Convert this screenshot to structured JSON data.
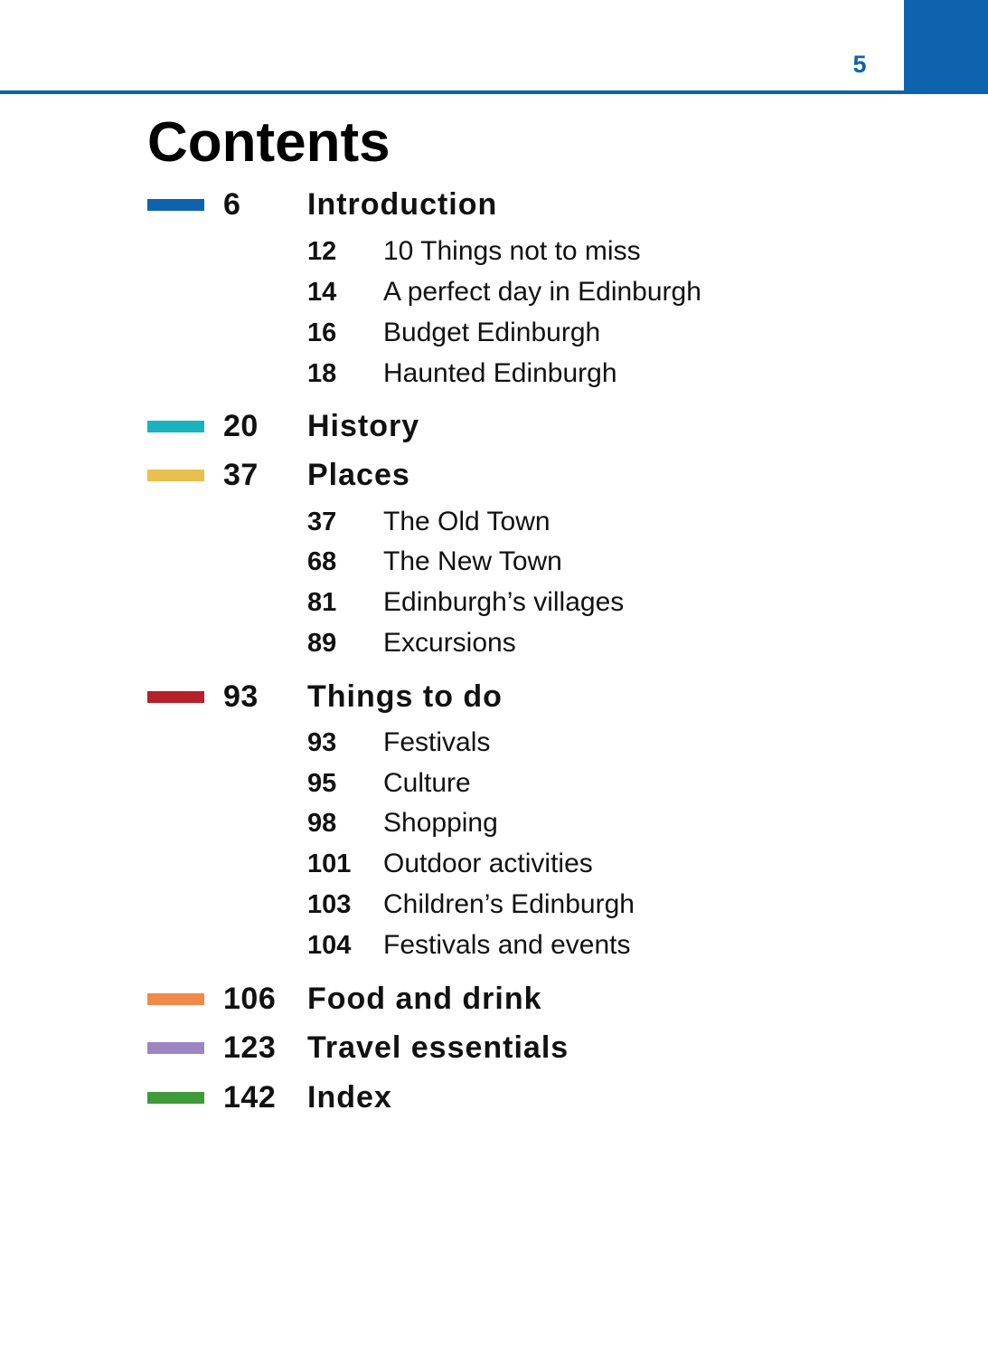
{
  "page_number": "5",
  "title": "Contents",
  "colors": {
    "accent_blue": "#0f62ad",
    "introduction": "#0f62ad",
    "history": "#1ab3bd",
    "places": "#e8c04d",
    "things_to_do": "#b5202b",
    "food_and_drink": "#f08a49",
    "travel_essentials": "#9b86c2",
    "index": "#3f9a3a"
  },
  "sections": [
    {
      "page": "6",
      "title": "Introduction",
      "items": [
        {
          "page": "12",
          "title": "10 Things not to miss"
        },
        {
          "page": "14",
          "title": "A perfect day in Edinburgh"
        },
        {
          "page": "16",
          "title": "Budget Edinburgh"
        },
        {
          "page": "18",
          "title": "Haunted Edinburgh"
        }
      ]
    },
    {
      "page": "20",
      "title": "History",
      "items": []
    },
    {
      "page": "37",
      "title": "Places",
      "items": [
        {
          "page": "37",
          "title": "The Old Town"
        },
        {
          "page": "68",
          "title": "The New Town"
        },
        {
          "page": "81",
          "title": "Edinburgh’s villages"
        },
        {
          "page": "89",
          "title": "Excursions"
        }
      ]
    },
    {
      "page": "93",
      "title": "Things to do",
      "items": [
        {
          "page": "93",
          "title": "Festivals"
        },
        {
          "page": "95",
          "title": "Culture"
        },
        {
          "page": "98",
          "title": "Shopping"
        },
        {
          "page": "101",
          "title": "Outdoor activities"
        },
        {
          "page": "103",
          "title": "Children’s Edinburgh"
        },
        {
          "page": "104",
          "title": "Festivals and events"
        }
      ]
    },
    {
      "page": "106",
      "title": "Food and drink",
      "items": []
    },
    {
      "page": "123",
      "title": "Travel essentials",
      "items": []
    },
    {
      "page": "142",
      "title": "Index",
      "items": []
    }
  ]
}
